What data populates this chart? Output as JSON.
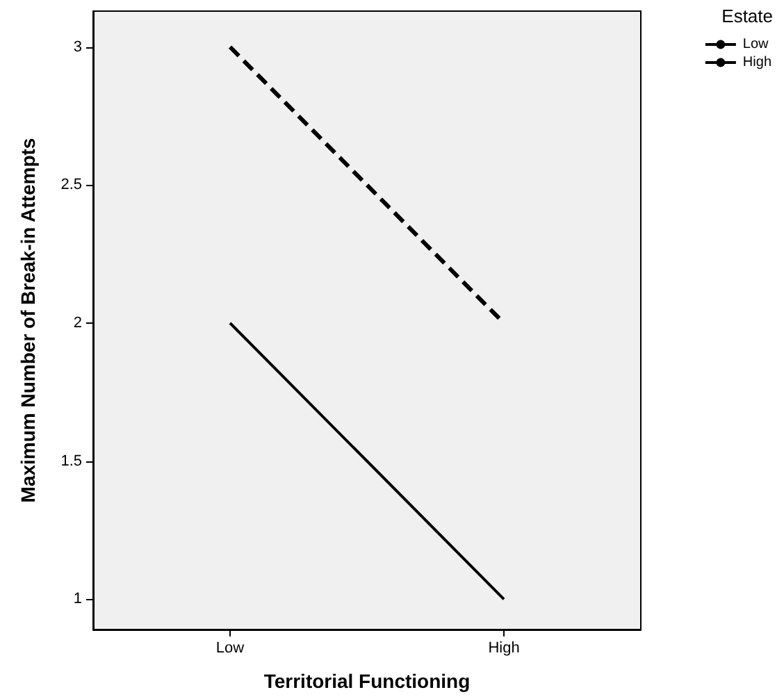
{
  "chart_data": {
    "type": "line",
    "xlabel": "Territorial Functioning",
    "ylabel": "Maximum Number of Break-in Attempts",
    "legend_title": "Estate",
    "categories": [
      "Low",
      "High"
    ],
    "series": [
      {
        "name": "Low",
        "color": "#000000",
        "line_style": "solid",
        "values": [
          2,
          1
        ]
      },
      {
        "name": "High",
        "color": "#000000",
        "line_style": "dashed",
        "values": [
          3,
          2
        ]
      }
    ],
    "ylim": [
      0.89,
      3.13
    ],
    "yticks": [
      1,
      1.5,
      2,
      2.5,
      3
    ],
    "grid": false,
    "legend": "top right",
    "marker": "none"
  }
}
